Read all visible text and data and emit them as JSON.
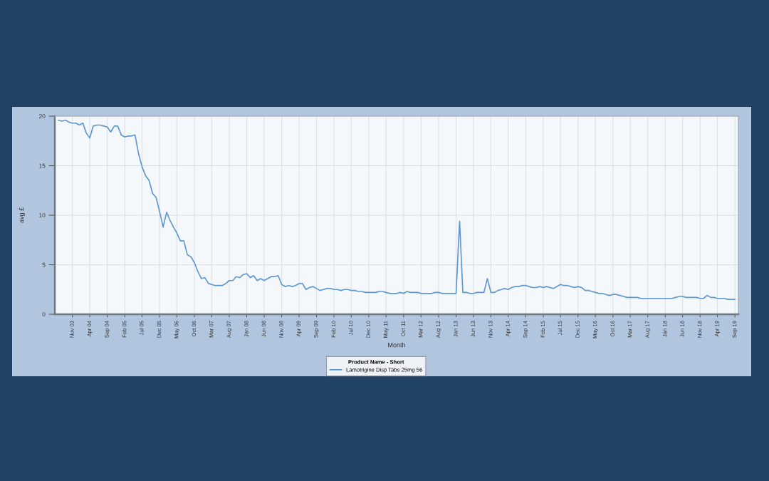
{
  "chart_data": {
    "type": "line",
    "xlabel": "Month",
    "ylabel": "avg £",
    "legend_title": "Product Name - Short",
    "x": [
      "2003-07",
      "2003-08",
      "2003-09",
      "2003-10",
      "2003-11",
      "2003-12",
      "2004-01",
      "2004-02",
      "2004-03",
      "2004-04",
      "2004-05",
      "2004-06",
      "2004-07",
      "2004-08",
      "2004-09",
      "2004-10",
      "2004-11",
      "2004-12",
      "2005-01",
      "2005-02",
      "2005-03",
      "2005-04",
      "2005-05",
      "2005-06",
      "2005-07",
      "2005-08",
      "2005-09",
      "2005-10",
      "2005-11",
      "2005-12",
      "2006-01",
      "2006-02",
      "2006-03",
      "2006-04",
      "2006-05",
      "2006-06",
      "2006-07",
      "2006-08",
      "2006-09",
      "2006-10",
      "2006-11",
      "2006-12",
      "2007-01",
      "2007-02",
      "2007-03",
      "2007-04",
      "2007-05",
      "2007-06",
      "2007-07",
      "2007-08",
      "2007-09",
      "2007-10",
      "2007-11",
      "2007-12",
      "2008-01",
      "2008-02",
      "2008-03",
      "2008-04",
      "2008-05",
      "2008-06",
      "2008-07",
      "2008-08",
      "2008-09",
      "2008-10",
      "2008-11",
      "2008-12",
      "2009-01",
      "2009-02",
      "2009-03",
      "2009-04",
      "2009-05",
      "2009-06",
      "2009-07",
      "2009-08",
      "2009-09",
      "2009-10",
      "2009-11",
      "2009-12",
      "2010-01",
      "2010-02",
      "2010-03",
      "2010-04",
      "2010-05",
      "2010-06",
      "2010-07",
      "2010-08",
      "2010-09",
      "2010-10",
      "2010-11",
      "2010-12",
      "2011-01",
      "2011-02",
      "2011-03",
      "2011-04",
      "2011-05",
      "2011-06",
      "2011-07",
      "2011-08",
      "2011-09",
      "2011-10",
      "2011-11",
      "2011-12",
      "2012-01",
      "2012-02",
      "2012-03",
      "2012-04",
      "2012-05",
      "2012-06",
      "2012-07",
      "2012-08",
      "2012-09",
      "2012-10",
      "2012-11",
      "2012-12",
      "2013-01",
      "2013-02",
      "2013-03",
      "2013-04",
      "2013-05",
      "2013-06",
      "2013-07",
      "2013-08",
      "2013-09",
      "2013-10",
      "2013-11",
      "2013-12",
      "2014-01",
      "2014-02",
      "2014-03",
      "2014-04",
      "2014-05",
      "2014-06",
      "2014-07",
      "2014-08",
      "2014-09",
      "2014-10",
      "2014-11",
      "2014-12",
      "2015-01",
      "2015-02",
      "2015-03",
      "2015-04",
      "2015-05",
      "2015-06",
      "2015-07",
      "2015-08",
      "2015-09",
      "2015-10",
      "2015-11",
      "2015-12",
      "2016-01",
      "2016-02",
      "2016-03",
      "2016-04",
      "2016-05",
      "2016-06",
      "2016-07",
      "2016-08",
      "2016-09",
      "2016-10",
      "2016-11",
      "2016-12",
      "2017-01",
      "2017-02",
      "2017-03",
      "2017-04",
      "2017-05",
      "2017-06",
      "2017-07",
      "2017-08",
      "2017-09",
      "2017-10",
      "2017-11",
      "2017-12",
      "2018-01",
      "2018-02",
      "2018-03",
      "2018-04",
      "2018-05",
      "2018-06",
      "2018-07",
      "2018-08",
      "2018-09",
      "2018-10",
      "2018-11",
      "2018-12",
      "2019-01",
      "2019-02",
      "2019-03",
      "2019-04",
      "2019-05",
      "2019-06",
      "2019-07",
      "2019-08",
      "2019-09"
    ],
    "series": [
      {
        "name": "Lamotrigine Disp Tabs 25mg 56",
        "color": "#5f98d0",
        "values": [
          19.6,
          19.5,
          19.6,
          19.4,
          19.3,
          19.3,
          19.1,
          19.3,
          18.3,
          17.8,
          19.0,
          19.1,
          19.1,
          19.0,
          18.9,
          18.4,
          19.0,
          19.0,
          18.1,
          17.9,
          18.0,
          18.0,
          18.1,
          16.2,
          14.9,
          14.0,
          13.5,
          12.2,
          11.8,
          10.4,
          8.8,
          10.3,
          9.5,
          8.8,
          8.2,
          7.4,
          7.4,
          6.0,
          5.8,
          5.2,
          4.3,
          3.6,
          3.7,
          3.1,
          3.0,
          2.9,
          2.9,
          2.9,
          3.1,
          3.4,
          3.4,
          3.8,
          3.7,
          4.0,
          4.1,
          3.7,
          3.9,
          3.4,
          3.6,
          3.4,
          3.6,
          3.8,
          3.8,
          3.9,
          3.0,
          2.8,
          2.9,
          2.8,
          2.9,
          3.1,
          3.1,
          2.5,
          2.7,
          2.8,
          2.6,
          2.4,
          2.5,
          2.6,
          2.6,
          2.5,
          2.5,
          2.4,
          2.5,
          2.5,
          2.4,
          2.4,
          2.3,
          2.3,
          2.2,
          2.2,
          2.2,
          2.2,
          2.3,
          2.3,
          2.2,
          2.1,
          2.1,
          2.1,
          2.2,
          2.1,
          2.3,
          2.2,
          2.2,
          2.2,
          2.1,
          2.1,
          2.1,
          2.1,
          2.2,
          2.2,
          2.1,
          2.1,
          2.1,
          2.1,
          2.1,
          9.4,
          2.2,
          2.2,
          2.1,
          2.1,
          2.2,
          2.2,
          2.2,
          3.6,
          2.2,
          2.2,
          2.4,
          2.5,
          2.6,
          2.5,
          2.7,
          2.8,
          2.8,
          2.9,
          2.9,
          2.8,
          2.7,
          2.7,
          2.8,
          2.7,
          2.8,
          2.7,
          2.6,
          2.8,
          3.0,
          2.9,
          2.9,
          2.8,
          2.7,
          2.8,
          2.7,
          2.4,
          2.4,
          2.3,
          2.2,
          2.1,
          2.1,
          2.0,
          1.9,
          2.0,
          2.0,
          1.9,
          1.8,
          1.7,
          1.7,
          1.7,
          1.7,
          1.6,
          1.6,
          1.6,
          1.6,
          1.6,
          1.6,
          1.6,
          1.6,
          1.6,
          1.6,
          1.7,
          1.8,
          1.8,
          1.7,
          1.7,
          1.7,
          1.7,
          1.6,
          1.6,
          1.9,
          1.7,
          1.7,
          1.6,
          1.6,
          1.6,
          1.5,
          1.5,
          1.5
        ]
      }
    ],
    "xlim": [
      "2003-06",
      "2019-10"
    ],
    "xticks": [
      {
        "value": "2003-11",
        "label": "Nov 03"
      },
      {
        "value": "2004-04",
        "label": "Apr 04"
      },
      {
        "value": "2004-09",
        "label": "Sep 04"
      },
      {
        "value": "2005-02",
        "label": "Feb 05"
      },
      {
        "value": "2005-07",
        "label": "Jul 05"
      },
      {
        "value": "2005-12",
        "label": "Dec 05"
      },
      {
        "value": "2006-05",
        "label": "May 06"
      },
      {
        "value": "2006-10",
        "label": "Oct 06"
      },
      {
        "value": "2007-03",
        "label": "Mar 07"
      },
      {
        "value": "2007-08",
        "label": "Aug 07"
      },
      {
        "value": "2008-01",
        "label": "Jan 08"
      },
      {
        "value": "2008-06",
        "label": "Jun 08"
      },
      {
        "value": "2008-11",
        "label": "Nov 08"
      },
      {
        "value": "2009-04",
        "label": "Apr 09"
      },
      {
        "value": "2009-09",
        "label": "Sep 09"
      },
      {
        "value": "2010-02",
        "label": "Feb 10"
      },
      {
        "value": "2010-07",
        "label": "Jul 10"
      },
      {
        "value": "2010-12",
        "label": "Dec 10"
      },
      {
        "value": "2011-05",
        "label": "May 11"
      },
      {
        "value": "2011-10",
        "label": "Oct 11"
      },
      {
        "value": "2012-03",
        "label": "Mar 12"
      },
      {
        "value": "2012-08",
        "label": "Aug 12"
      },
      {
        "value": "2013-01",
        "label": "Jan 13"
      },
      {
        "value": "2013-06",
        "label": "Jun 13"
      },
      {
        "value": "2013-11",
        "label": "Nov 13"
      },
      {
        "value": "2014-04",
        "label": "Apr 14"
      },
      {
        "value": "2014-09",
        "label": "Sep 14"
      },
      {
        "value": "2015-02",
        "label": "Feb 15"
      },
      {
        "value": "2015-07",
        "label": "Jul 15"
      },
      {
        "value": "2015-12",
        "label": "Dec 15"
      },
      {
        "value": "2016-05",
        "label": "May 16"
      },
      {
        "value": "2016-10",
        "label": "Oct 16"
      },
      {
        "value": "2017-03",
        "label": "Mar 17"
      },
      {
        "value": "2017-08",
        "label": "Aug 17"
      },
      {
        "value": "2018-01",
        "label": "Jan 18"
      },
      {
        "value": "2018-06",
        "label": "Jun 18"
      },
      {
        "value": "2018-11",
        "label": "Nov 18"
      },
      {
        "value": "2019-04",
        "label": "Apr 19"
      },
      {
        "value": "2019-09",
        "label": "Sep 19"
      }
    ],
    "ylim": [
      0,
      20
    ],
    "yticks": [
      0,
      5,
      10,
      15,
      20
    ],
    "grid": true,
    "legend": "bottom"
  }
}
